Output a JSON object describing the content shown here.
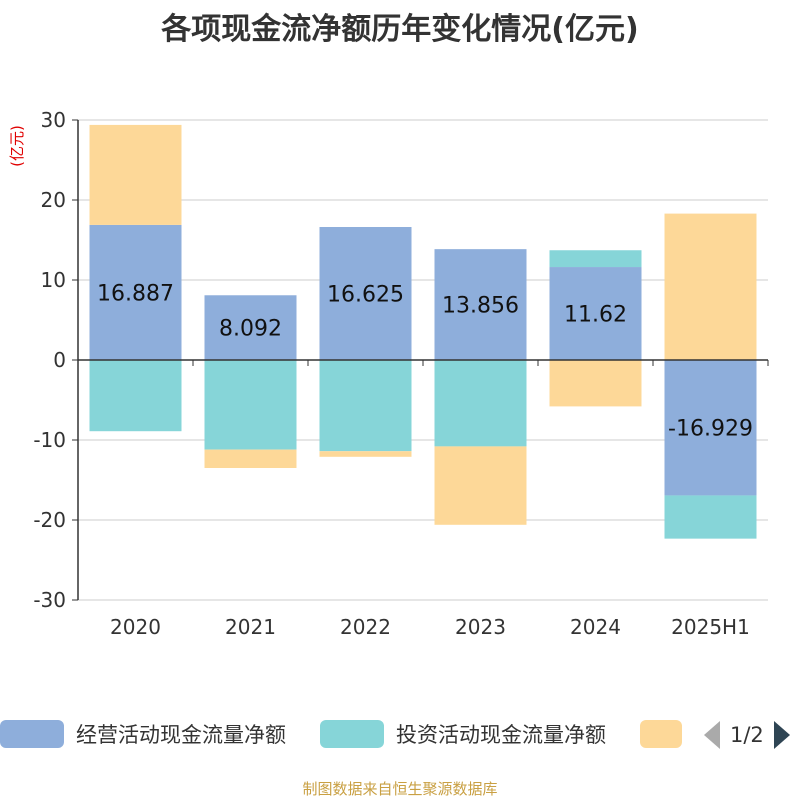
{
  "chart_data": {
    "type": "bar",
    "stacked": true,
    "title": "各项现金流净额历年变化情况(亿元)",
    "ylabel": "(亿元)",
    "xlabel": "",
    "categories": [
      "2020",
      "2021",
      "2022",
      "2023",
      "2024",
      "2025H1"
    ],
    "ylim": [
      -30,
      30
    ],
    "yticks": [
      30,
      20,
      10,
      0,
      -10,
      -20,
      -30
    ],
    "grid": true,
    "series": [
      {
        "name": "经营活动现金流量净额",
        "color": "#8eaedb",
        "values": [
          16.887,
          8.092,
          16.625,
          13.856,
          11.62,
          -16.929
        ],
        "labels_shown": true
      },
      {
        "name": "投资活动现金流量净额",
        "color": "#86d5d8",
        "values": [
          -8.9,
          -11.2,
          -11.4,
          -10.8,
          2.1,
          -5.4
        ]
      },
      {
        "name": "",
        "color": "#fdd898",
        "values": [
          12.5,
          -2.3,
          -0.7,
          -9.8,
          -5.8,
          18.3
        ]
      }
    ],
    "data_labels": [
      "16.887",
      "8.092",
      "16.625",
      "13.856",
      "11.62",
      "-16.929"
    ],
    "legend_placement": "bottom"
  },
  "legend": {
    "page_text": "1/2"
  },
  "source": "制图数据来自恒生聚源数据库"
}
